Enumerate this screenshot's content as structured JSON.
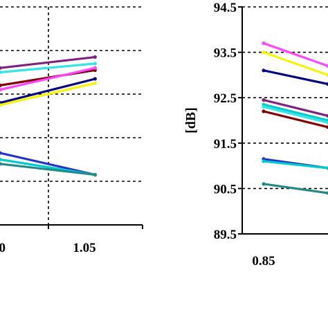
{
  "chart_data": [
    {
      "type": "line",
      "title": "",
      "xlabel": "",
      "ylabel": "",
      "xlim": [
        0.95,
        1.1
      ],
      "ylim": [
        89.5,
        94.5
      ],
      "x_ticks": [
        "0",
        "1.05"
      ],
      "grid": true,
      "series": [
        {
          "color": "#7f1f7f",
          "x": [
            0.95,
            1.05
          ],
          "y": [
            93.1,
            93.35
          ]
        },
        {
          "color": "#33e6e6",
          "x": [
            0.95,
            1.05
          ],
          "y": [
            93.0,
            93.2
          ]
        },
        {
          "color": "#800000",
          "x": [
            0.95,
            1.05
          ],
          "y": [
            92.7,
            93.05
          ]
        },
        {
          "color": "#ff44ff",
          "x": [
            0.95,
            1.05
          ],
          "y": [
            92.6,
            93.1
          ]
        },
        {
          "color": "#000080",
          "x": [
            0.95,
            1.05
          ],
          "y": [
            92.3,
            92.85
          ]
        },
        {
          "color": "#f5f500",
          "x": [
            0.95,
            1.05
          ],
          "y": [
            92.25,
            92.75
          ]
        },
        {
          "color": "#2233cc",
          "x": [
            0.95,
            1.05
          ],
          "y": [
            91.15,
            90.65
          ]
        },
        {
          "color": "#00cccc",
          "x": [
            0.95,
            1.05
          ],
          "y": [
            91.0,
            90.65
          ]
        },
        {
          "color": "#228888",
          "x": [
            0.95,
            1.05
          ],
          "y": [
            90.9,
            90.65
          ]
        }
      ]
    },
    {
      "type": "line",
      "title": "",
      "xlabel": "",
      "ylabel": "[dB]",
      "xlim": [
        0.8,
        1.0
      ],
      "ylim": [
        89.5,
        94.5
      ],
      "yticks": [
        "89.5",
        "90.5",
        "91.5",
        "92.5",
        "93.5",
        "94.5"
      ],
      "x_ticks": [
        "0.85"
      ],
      "grid": true,
      "series": [
        {
          "color": "#ff44ff",
          "x": [
            0.85,
            1.0
          ],
          "y": [
            93.7,
            93.2
          ]
        },
        {
          "color": "#f5f500",
          "x": [
            0.85,
            1.0
          ],
          "y": [
            93.5,
            93.0
          ]
        },
        {
          "color": "#000080",
          "x": [
            0.85,
            1.0
          ],
          "y": [
            93.1,
            92.8
          ]
        },
        {
          "color": "#7f1f7f",
          "x": [
            0.85,
            1.0
          ],
          "y": [
            92.45,
            92.1
          ]
        },
        {
          "color": "#00cccc",
          "x": [
            0.85,
            1.0
          ],
          "y": [
            92.35,
            92.0
          ]
        },
        {
          "color": "#33e6e6",
          "x": [
            0.85,
            1.0
          ],
          "y": [
            92.3,
            91.95
          ]
        },
        {
          "color": "#800000",
          "x": [
            0.85,
            1.0
          ],
          "y": [
            92.2,
            91.85
          ]
        },
        {
          "color": "#2233cc",
          "x": [
            0.85,
            1.0
          ],
          "y": [
            91.15,
            90.95
          ]
        },
        {
          "color": "#00cccc",
          "x": [
            0.85,
            1.0
          ],
          "y": [
            91.1,
            90.95
          ]
        },
        {
          "color": "#228888",
          "x": [
            0.85,
            1.0
          ],
          "y": [
            90.6,
            90.4
          ]
        }
      ]
    }
  ]
}
